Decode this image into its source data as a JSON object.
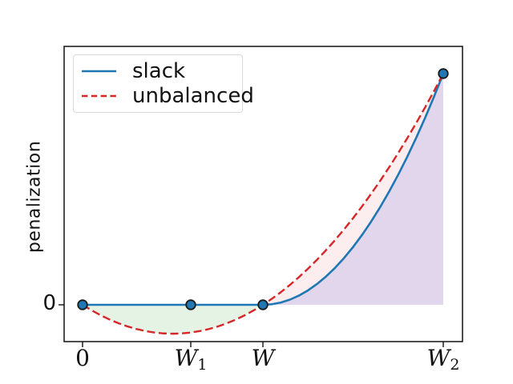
{
  "chart_data": {
    "type": "line",
    "title": "",
    "xlabel": "",
    "ylabel": "penalization",
    "xlim": [
      -0.051,
      1.053
    ],
    "ylim": [
      -0.04,
      0.279
    ],
    "grid": false,
    "legend_position": "upper left",
    "x": [
      0,
      0.025,
      0.05,
      0.075,
      0.1,
      0.125,
      0.15,
      0.175,
      0.2,
      0.225,
      0.25,
      0.275,
      0.3,
      0.325,
      0.35,
      0.375,
      0.4,
      0.425,
      0.45,
      0.475,
      0.5,
      0.525,
      0.55,
      0.575,
      0.6,
      0.625,
      0.65,
      0.675,
      0.7,
      0.725,
      0.75,
      0.775,
      0.8,
      0.825,
      0.85,
      0.875,
      0.9,
      0.925,
      0.95,
      0.975,
      1.0
    ],
    "series": [
      {
        "name": "slack",
        "color": "#1f77b4",
        "style": "solid",
        "width": 2.6,
        "y": [
          0,
          0,
          0,
          0,
          0,
          0,
          0,
          0,
          0,
          0,
          0,
          0,
          0,
          0,
          0,
          0,
          0,
          0,
          0,
          0,
          0,
          0.000625,
          0.0025,
          0.005625,
          0.01,
          0.015625,
          0.0225,
          0.030625,
          0.04,
          0.050625,
          0.0625,
          0.075625,
          0.09,
          0.105625,
          0.1225,
          0.140625,
          0.16,
          0.180625,
          0.2025,
          0.225625,
          0.25
        ]
      },
      {
        "name": "unbalanced",
        "color": "#d62728",
        "style": "dashed",
        "width": 2.4,
        "y": [
          0,
          -0.005938,
          -0.01125,
          -0.015938,
          -0.02,
          -0.023438,
          -0.02625,
          -0.028438,
          -0.03,
          -0.030938,
          -0.03125,
          -0.030938,
          -0.03,
          -0.028438,
          -0.02625,
          -0.023438,
          -0.02,
          -0.015938,
          -0.01125,
          -0.005938,
          0,
          0.006563,
          0.01375,
          0.021563,
          0.03,
          0.039063,
          0.04875,
          0.059063,
          0.07,
          0.081563,
          0.09375,
          0.106563,
          0.12,
          0.134063,
          0.14875,
          0.164063,
          0.18,
          0.196563,
          0.21375,
          0.231563,
          0.25
        ]
      }
    ],
    "regions": [
      {
        "id": "negative-green",
        "x_range": [
          0,
          0.5
        ],
        "upper": "zero",
        "lower": "unbalanced",
        "color": "rgba(44,160,44,0.12)"
      },
      {
        "id": "between-pink",
        "x_range": [
          0.5,
          1
        ],
        "upper": "unbalanced",
        "lower": "slack",
        "color": "rgba(214,39,40,0.08)"
      },
      {
        "id": "under-purple",
        "x_range": [
          0.5,
          1
        ],
        "upper": "slack",
        "lower": "zero",
        "color": "rgba(148,103,189,0.27)"
      }
    ],
    "markers": {
      "x": [
        0,
        0.3,
        0.5,
        1.0
      ],
      "y": [
        0,
        0,
        0,
        0.25
      ],
      "face": "#1f77b4",
      "edge": "#1a1a1a",
      "radius": 5.8
    },
    "x_ticks": [
      {
        "base": "0",
        "sub": "",
        "x": 0
      },
      {
        "base": "W",
        "sub": "1",
        "x": 0.3
      },
      {
        "base": "W",
        "sub": "",
        "x": 0.5
      },
      {
        "base": "W",
        "sub": "2",
        "x": 1.0
      }
    ],
    "y_ticks": [
      {
        "label": "0",
        "y": 0
      }
    ],
    "legend": {
      "entries": [
        {
          "label": "slack",
          "color": "#1f77b4",
          "style": "solid"
        },
        {
          "label": "unbalanced",
          "color": "#d62728",
          "style": "dashed"
        }
      ]
    },
    "axis_color": "#111111"
  }
}
